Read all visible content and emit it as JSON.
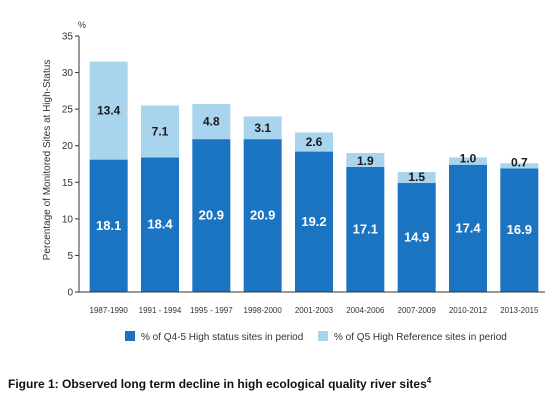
{
  "caption": {
    "text": "Figure 1: Observed long term decline in high ecological quality river sites",
    "footnote": "4"
  },
  "chart_data": {
    "type": "bar",
    "stacked": true,
    "categories": [
      "1987-1990",
      "1991 - 1994",
      "1995 - 1997",
      "1998-2000",
      "2001-2003",
      "2004-2006",
      "2007-2009",
      "2010-2012",
      "2013-2015"
    ],
    "series": [
      {
        "name": "% of Q4-5 High status sites in period",
        "color": "#1a74c2",
        "values": [
          18.1,
          18.4,
          20.9,
          20.9,
          19.2,
          17.1,
          14.9,
          17.4,
          16.9
        ]
      },
      {
        "name": "% of Q5 High Reference sites in period",
        "color": "#a9d4ee",
        "values": [
          13.4,
          7.1,
          4.8,
          3.1,
          2.6,
          1.9,
          1.5,
          1.0,
          0.7
        ]
      }
    ],
    "ylabel": "Percentage of Monitored Sites at High-Status",
    "yunit": "%",
    "ylim": [
      0,
      35
    ],
    "yticks": [
      "0",
      "5",
      "10",
      "15",
      "20",
      "25",
      "30",
      "35"
    ],
    "grid": false,
    "legend_position": "bottom"
  }
}
